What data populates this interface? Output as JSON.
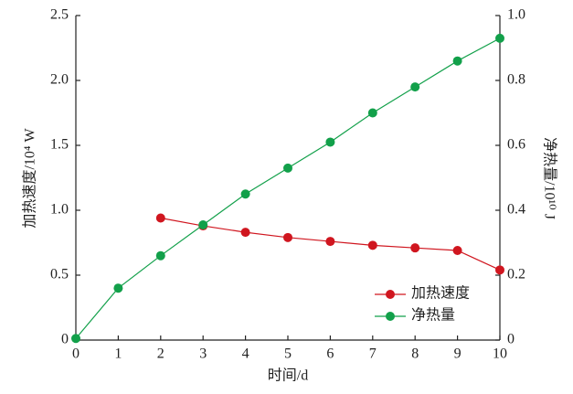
{
  "chart_data": {
    "type": "line",
    "x": [
      0,
      1,
      2,
      3,
      4,
      5,
      6,
      7,
      8,
      9,
      10
    ],
    "xlim": [
      0,
      10
    ],
    "xticks": [
      0,
      1,
      2,
      3,
      4,
      5,
      6,
      7,
      8,
      9,
      10
    ],
    "xlabel": "时间/d",
    "ylabel": "加热速度/10⁴ W",
    "y2label": "净热量/10¹⁰ J",
    "ylim": [
      0,
      2.5
    ],
    "yticks": [
      0,
      0.5,
      {
        "value": 1,
        "label": "1.0"
      },
      1.5,
      {
        "value": 2,
        "label": "2.0"
      },
      2.5
    ],
    "y2lim": [
      0,
      1
    ],
    "y2ticks": [
      0,
      0.2,
      0.4,
      0.6,
      0.8,
      {
        "value": 1,
        "label": "1.0"
      }
    ],
    "legend": "lower right",
    "series": [
      {
        "name": "加热速度",
        "color": "#d0161f",
        "values": [
          null,
          null,
          0.94,
          0.88,
          0.83,
          0.79,
          0.76,
          0.73,
          0.71,
          0.69,
          0.54
        ]
      },
      {
        "name": "净热量",
        "color": "#12a04a",
        "axis": "y2",
        "values": [
          0.005,
          0.16,
          0.26,
          0.355,
          0.45,
          0.53,
          0.61,
          0.7,
          0.78,
          0.86,
          0.93
        ]
      }
    ]
  }
}
